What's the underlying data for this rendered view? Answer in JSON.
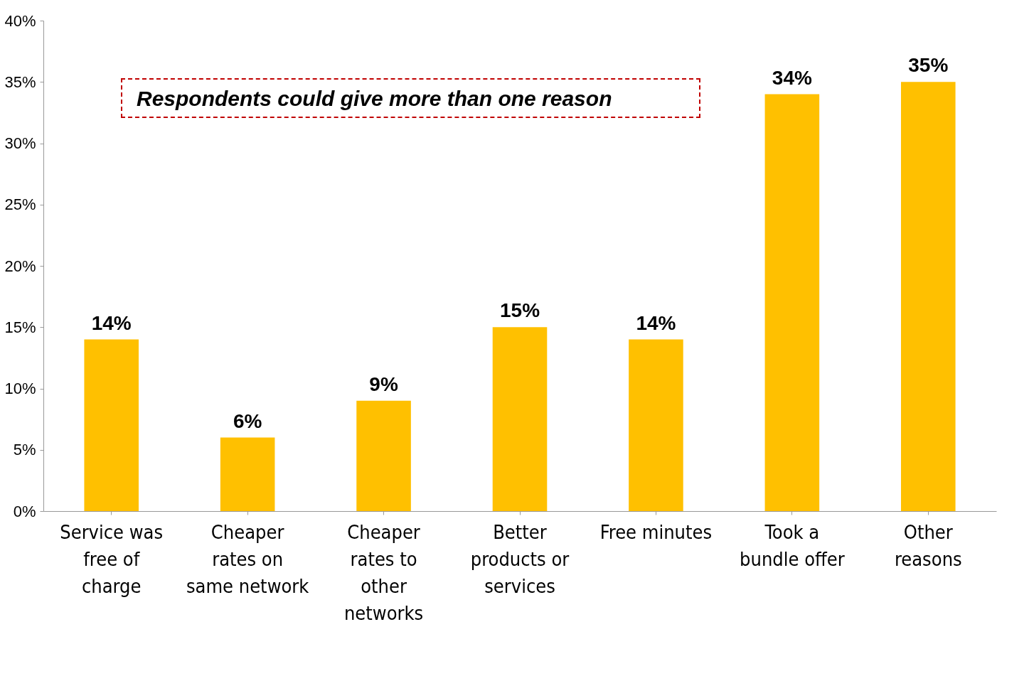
{
  "chart_data": {
    "type": "bar",
    "categories": [
      "Service was free of charge",
      "Cheaper rates on same network",
      "Cheaper rates to other networks",
      "Better products or services",
      "Free minutes",
      "Took a bundle offer",
      "Other reasons"
    ],
    "values": [
      14,
      6,
      9,
      15,
      14,
      34,
      35
    ],
    "value_labels": [
      "14%",
      "6%",
      "9%",
      "15%",
      "14%",
      "34%",
      "35%"
    ],
    "color": "#ffc000",
    "ylim": [
      0,
      40
    ],
    "yticks": [
      {
        "value": 0,
        "label": "0%"
      },
      {
        "value": 5,
        "label": "5%"
      },
      {
        "value": 10,
        "label": "10%"
      },
      {
        "value": 15,
        "label": "15%"
      },
      {
        "value": 20,
        "label": "20%"
      },
      {
        "value": 25,
        "label": "25%"
      },
      {
        "value": 30,
        "label": "30%"
      },
      {
        "value": 35,
        "label": "35%"
      },
      {
        "value": 40,
        "label": "40%"
      }
    ],
    "annotations": [
      "Respondents could give more than one reason"
    ],
    "grid": false
  }
}
